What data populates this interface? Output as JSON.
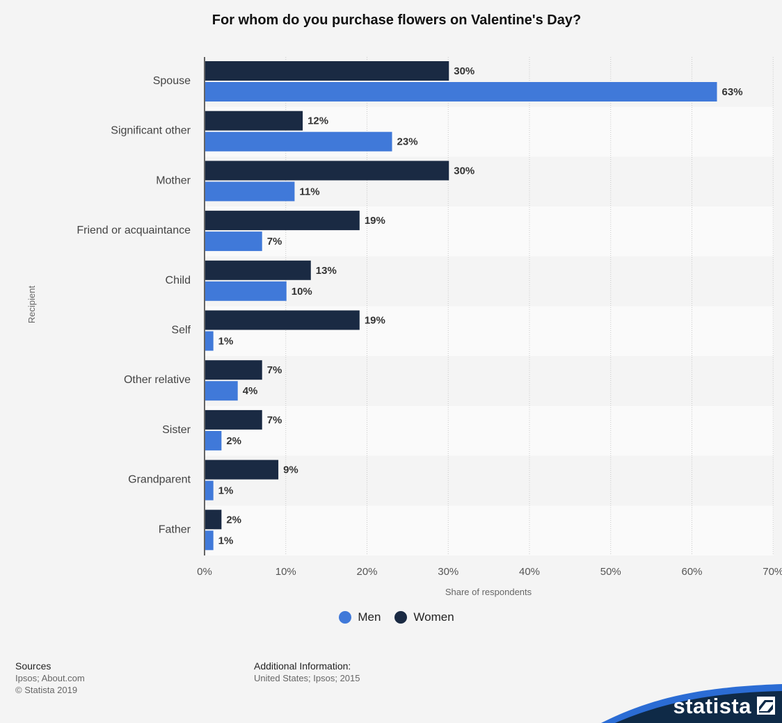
{
  "chart_data": {
    "type": "bar",
    "orientation": "horizontal",
    "title": "For whom do you purchase flowers on Valentine's Day?",
    "ylabel": "Recipient",
    "xlabel": "Share of respondents",
    "categories": [
      "Spouse",
      "Significant other",
      "Mother",
      "Friend or acquaintance",
      "Child",
      "Self",
      "Other relative",
      "Sister",
      "Grandparent",
      "Father"
    ],
    "series": [
      {
        "name": "Women",
        "color": "#1a2a43",
        "values": [
          30,
          12,
          30,
          19,
          13,
          19,
          7,
          7,
          9,
          2
        ]
      },
      {
        "name": "Men",
        "color": "#4079d9",
        "values": [
          63,
          23,
          11,
          7,
          10,
          1,
          4,
          2,
          1,
          1
        ]
      }
    ],
    "xlim": [
      0,
      70
    ],
    "ticks": [
      "0%",
      "10%",
      "20%",
      "30%",
      "40%",
      "50%",
      "60%",
      "70%"
    ],
    "value_suffix": "%",
    "grid": true,
    "legend_position": "bottom"
  },
  "legend": {
    "items": [
      {
        "label": "Men",
        "color": "#4079d9"
      },
      {
        "label": "Women",
        "color": "#1a2a43"
      }
    ]
  },
  "footer": {
    "sources_heading": "Sources",
    "sources_line1": "Ipsos; About.com",
    "sources_line2": "© Statista 2019",
    "info_heading": "Additional Information:",
    "info_line1": "United States; Ipsos; 2015"
  },
  "brand": {
    "name": "statista",
    "color": "#0f2a47",
    "accent": "#2b6cd4"
  }
}
